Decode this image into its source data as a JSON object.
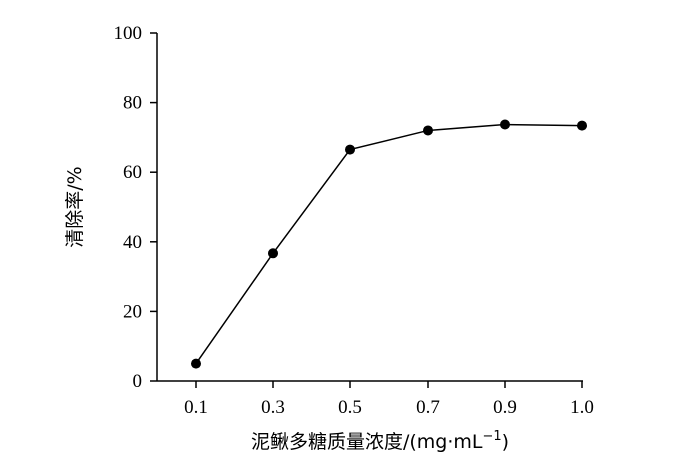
{
  "chart_data": {
    "type": "line",
    "title": "",
    "x_label": "泥鳅多糖质量浓度/(mg·mL",
    "x_label_superscript": "−1",
    "x_label_suffix": ")",
    "y_label": "清除率/%",
    "categories": [
      "0.1",
      "0.3",
      "0.5",
      "0.7",
      "0.9",
      "1.0"
    ],
    "series": [
      {
        "values": [
          5.0,
          36.7,
          66.5,
          72.0,
          73.7,
          73.4
        ],
        "color": "#000000",
        "marker": "filled-circle"
      }
    ],
    "ylim": [
      0,
      100
    ],
    "y_ticks": [
      0,
      20,
      40,
      60,
      80,
      100
    ],
    "grid": false,
    "legend": "none"
  }
}
